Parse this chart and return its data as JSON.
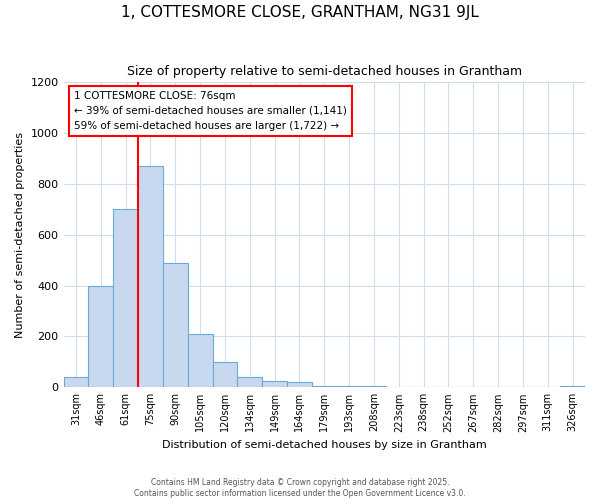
{
  "title": "1, COTTESMORE CLOSE, GRANTHAM, NG31 9JL",
  "subtitle": "Size of property relative to semi-detached houses in Grantham",
  "xlabel": "Distribution of semi-detached houses by size in Grantham",
  "ylabel": "Number of semi-detached properties",
  "bar_labels": [
    "31sqm",
    "46sqm",
    "61sqm",
    "75sqm",
    "90sqm",
    "105sqm",
    "120sqm",
    "134sqm",
    "149sqm",
    "164sqm",
    "179sqm",
    "193sqm",
    "208sqm",
    "223sqm",
    "238sqm",
    "252sqm",
    "267sqm",
    "282sqm",
    "297sqm",
    "311sqm",
    "326sqm"
  ],
  "bar_values": [
    40,
    400,
    700,
    870,
    490,
    210,
    100,
    40,
    25,
    20,
    5,
    5,
    5,
    3,
    3,
    3,
    3,
    3,
    3,
    0,
    5
  ],
  "bar_color": "#c8d9ef",
  "bar_edge_color": "#6aaad4",
  "ylim": [
    0,
    1200
  ],
  "yticks": [
    0,
    200,
    400,
    600,
    800,
    1000,
    1200
  ],
  "property_bin_index": 3,
  "property_line_color": "red",
  "annotation_title": "1 COTTESMORE CLOSE: 76sqm",
  "annotation_line2": "← 39% of semi-detached houses are smaller (1,141)",
  "annotation_line3": "59% of semi-detached houses are larger (1,722) →",
  "footer_line1": "Contains HM Land Registry data © Crown copyright and database right 2025.",
  "footer_line2": "Contains public sector information licensed under the Open Government Licence v3.0.",
  "background_color": "#ffffff",
  "grid_color": "#d0ddf0"
}
